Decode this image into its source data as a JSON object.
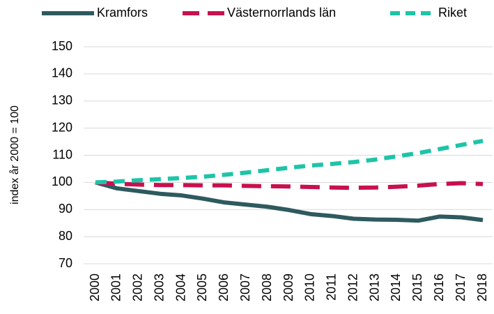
{
  "chart_data": {
    "type": "line",
    "y_label": "index år 2000 = 100",
    "categories": [
      "2000",
      "2001",
      "2002",
      "2003",
      "2004",
      "2005",
      "2006",
      "2007",
      "2008",
      "2009",
      "2010",
      "2011",
      "2012",
      "2013",
      "2014",
      "2015",
      "2016",
      "2017",
      "2018"
    ],
    "series": [
      {
        "name": "Kramfors",
        "color": "#2e5a5e",
        "line_style": "solid",
        "values": [
          100,
          97.8,
          96.8,
          95.8,
          95.2,
          94,
          92.6,
          91.8,
          91,
          89.8,
          88.3,
          87.6,
          86.6,
          86.3,
          86.2,
          85.9,
          87.4,
          87.1,
          86.1
        ]
      },
      {
        "name": "Västernorrlands län",
        "color": "#c8104e",
        "line_style": "dashed",
        "values": [
          100,
          99.5,
          99.2,
          99.0,
          99.0,
          98.9,
          98.9,
          98.7,
          98.6,
          98.5,
          98.3,
          98.1,
          98.0,
          98.1,
          98.4,
          98.8,
          99.4,
          99.7,
          99.4
        ]
      },
      {
        "name": "Riket",
        "color": "#1ec4a8",
        "line_style": "dotted",
        "values": [
          100,
          100.3,
          100.8,
          101.2,
          101.6,
          102.1,
          102.8,
          103.6,
          104.5,
          105.4,
          106.2,
          106.8,
          107.5,
          108.4,
          109.6,
          110.8,
          112.3,
          113.8,
          115.3
        ]
      }
    ],
    "ylim": [
      70,
      150
    ],
    "yticks": [
      70,
      80,
      90,
      100,
      110,
      120,
      130,
      140,
      150
    ],
    "grid": true,
    "legend": "top"
  }
}
